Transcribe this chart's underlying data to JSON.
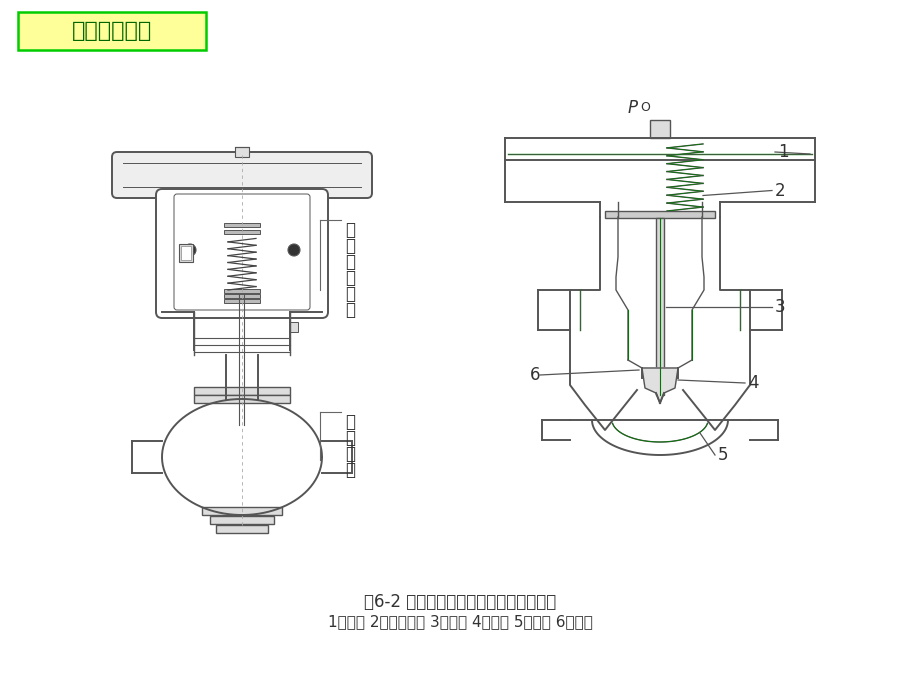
{
  "bg_color": "#ffffff",
  "title_text": "执行器的构成",
  "title_bg": "#ffff99",
  "title_border": "#00cc00",
  "title_text_color": "#006600",
  "caption_line1": "图6-2 气动薄膜调节阀的外形和内部结构",
  "caption_line2": "1－薄膜 2－平衡弹簧 3－阀杆 4－阀芯 5－阀体 6－阀座",
  "label_actuator_chars": [
    "气",
    "动",
    "执",
    "行",
    "机",
    "构"
  ],
  "label_regulator_chars": [
    "调",
    "节",
    "机",
    "构"
  ],
  "draw_color": "#555555",
  "green_color": "#007700",
  "gray_fill": "#e0e0e0",
  "dark_gray": "#888888",
  "figsize": [
    9.2,
    6.9
  ],
  "dpi": 100
}
